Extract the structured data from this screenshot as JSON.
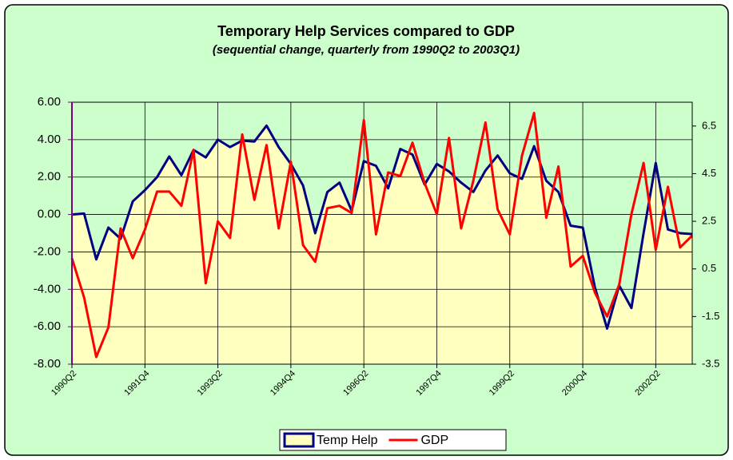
{
  "chart_data": {
    "type": "area-line",
    "title": "Temporary Help Services compared to GDP",
    "subtitle": "(sequential change, quarterly from 1990Q2 to 2003Q1)",
    "categories": [
      "1990Q2",
      null,
      null,
      null,
      null,
      null,
      "1991Q4",
      null,
      null,
      null,
      null,
      null,
      "1993Q2",
      null,
      null,
      null,
      null,
      null,
      "1994Q4",
      null,
      null,
      null,
      null,
      null,
      "1996Q2",
      null,
      null,
      null,
      null,
      null,
      "1997Q4",
      null,
      null,
      null,
      null,
      null,
      "1999Q2",
      null,
      null,
      null,
      null,
      null,
      "2000Q4",
      null,
      null,
      null,
      null,
      null,
      "2002Q2",
      null,
      null,
      null
    ],
    "series": [
      {
        "name": "Temp Help",
        "type": "area",
        "color": "#000080",
        "area_color": "#ffffc0",
        "axis": "y",
        "values": [
          0.0,
          0.05,
          -2.4,
          -0.7,
          -1.3,
          0.7,
          1.3,
          2.0,
          3.1,
          2.1,
          3.45,
          3.05,
          4.0,
          3.6,
          3.95,
          3.9,
          4.75,
          3.6,
          2.7,
          1.55,
          -1.0,
          1.2,
          1.7,
          0.2,
          2.85,
          2.6,
          1.4,
          3.5,
          3.2,
          1.6,
          2.7,
          2.3,
          1.7,
          1.2,
          2.35,
          3.15,
          2.2,
          1.9,
          3.65,
          1.8,
          1.2,
          -0.6,
          -0.7,
          -3.9,
          -6.1,
          -3.8,
          -5.0,
          -1.0,
          2.75,
          -0.8,
          -1.0,
          -1.05
        ]
      },
      {
        "name": "GDP",
        "type": "line",
        "color": "#ff0000",
        "axis": "y2",
        "values": [
          0.95,
          -0.7,
          -3.2,
          -1.95,
          2.2,
          0.95,
          2.15,
          3.75,
          3.75,
          3.15,
          5.5,
          -0.1,
          2.5,
          1.8,
          6.15,
          3.4,
          5.7,
          2.2,
          5.0,
          1.5,
          0.8,
          3.05,
          3.15,
          2.85,
          6.75,
          1.95,
          4.55,
          4.4,
          5.8,
          4.1,
          2.8,
          6.0,
          2.2,
          4.2,
          6.65,
          3.0,
          1.95,
          5.25,
          7.05,
          2.65,
          4.8,
          0.6,
          1.05,
          -0.5,
          -1.5,
          -0.15,
          2.8,
          4.95,
          1.3,
          3.95,
          1.4,
          1.9
        ]
      }
    ],
    "ylim": [
      -8,
      6
    ],
    "yticks": [
      {
        "value": -8,
        "label": "-8.00"
      },
      {
        "value": -6,
        "label": "-6.00"
      },
      {
        "value": -4,
        "label": "-4.00"
      },
      {
        "value": -2,
        "label": "-2.00"
      },
      {
        "value": 0,
        "label": "0.00"
      },
      {
        "value": 2,
        "label": "2.00"
      },
      {
        "value": 4,
        "label": "4.00"
      },
      {
        "value": 6,
        "label": "6.00"
      }
    ],
    "y2lim": [
      -3.5,
      7.5
    ],
    "y2ticks": [
      -3.5,
      -1.5,
      0.5,
      2.5,
      4.5,
      6.5
    ],
    "grid": true,
    "legend": "bottom"
  }
}
